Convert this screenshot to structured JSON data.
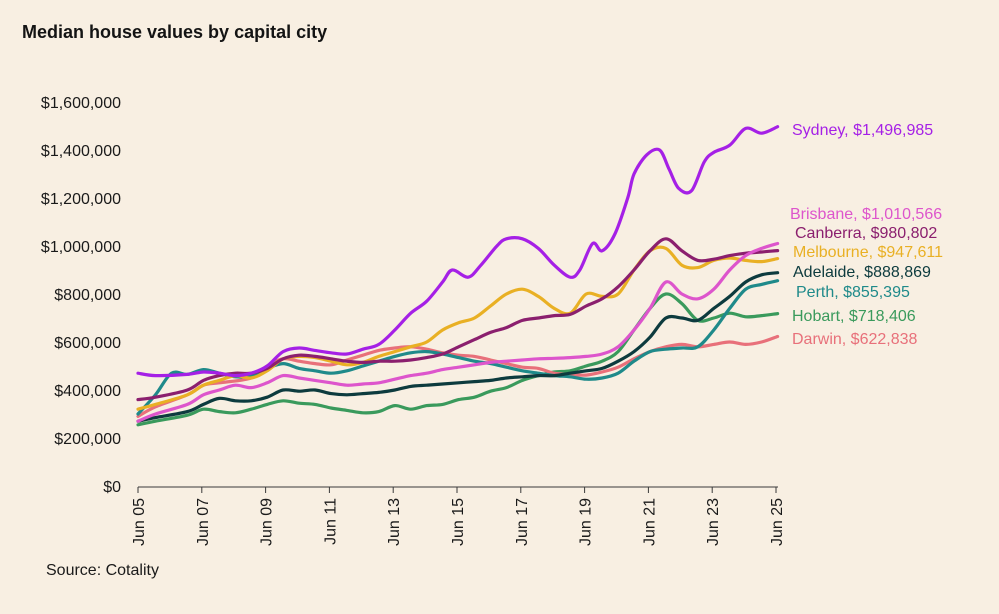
{
  "title": "Median house values by capital city",
  "source": "Source: Cotality",
  "chart_data": {
    "type": "line",
    "title": "Median house values by capital city",
    "xlabel": "",
    "ylabel": "",
    "ylim": [
      0,
      1600000
    ],
    "xlim": [
      2005.45,
      2025.5
    ],
    "y_ticks": [
      0,
      200000,
      400000,
      600000,
      800000,
      1000000,
      1200000,
      1400000,
      1600000
    ],
    "y_tick_labels": [
      "$0",
      "$200,000",
      "$400,000",
      "$600,000",
      "$800,000",
      "$1,000,000",
      "$1,200,000",
      "$1,400,000",
      "$1,600,000"
    ],
    "x_ticks": [
      2005.45,
      2007.45,
      2009.45,
      2011.45,
      2013.45,
      2015.45,
      2017.45,
      2019.45,
      2021.45,
      2023.45,
      2025.45
    ],
    "x_tick_labels": [
      "Jun 05",
      "Jun 07",
      "Jun 09",
      "Jun 11",
      "Jun 13",
      "Jun 15",
      "Jun 17",
      "Jun 19",
      "Jun 21",
      "Jun 23",
      "Jun 25"
    ],
    "grid": false,
    "legend": "end-of-line labels",
    "series": [
      {
        "name": "Hobart",
        "label": "Hobart, $718,406",
        "color": "#3a9a5c",
        "x": [
          2005.45,
          2006,
          2007,
          2007.5,
          2008,
          2008.5,
          2009,
          2009.5,
          2010,
          2010.5,
          2011,
          2011.5,
          2012,
          2012.5,
          2013,
          2013.5,
          2014,
          2014.5,
          2015,
          2015.5,
          2016,
          2016.5,
          2017,
          2017.5,
          2018,
          2018.5,
          2019,
          2019.5,
          2020,
          2020.5,
          2021,
          2021.5,
          2022,
          2022.5,
          2023,
          2023.5,
          2024,
          2024.5,
          2025,
          2025.5
        ],
        "y": [
          255000,
          270000,
          295000,
          320000,
          310000,
          305000,
          320000,
          340000,
          355000,
          345000,
          340000,
          325000,
          315000,
          305000,
          310000,
          335000,
          320000,
          335000,
          340000,
          360000,
          370000,
          395000,
          410000,
          440000,
          460000,
          475000,
          480000,
          500000,
          520000,
          560000,
          650000,
          740000,
          800000,
          760000,
          690000,
          700000,
          720000,
          705000,
          710000,
          718406
        ]
      },
      {
        "name": "Darwin",
        "label": "Darwin, $622,838",
        "color": "#e8707a",
        "x": [
          2005.45,
          2006,
          2007,
          2007.5,
          2008,
          2009,
          2009.5,
          2010,
          2010.5,
          2011,
          2011.5,
          2012,
          2012.5,
          2013,
          2013.5,
          2014,
          2014.5,
          2015,
          2015.5,
          2016,
          2016.5,
          2017,
          2017.5,
          2018,
          2018.5,
          2019,
          2019.5,
          2020,
          2020.5,
          2021,
          2021.5,
          2022,
          2022.5,
          2023,
          2023.5,
          2024,
          2024.5,
          2025,
          2025.5
        ],
        "y": [
          290000,
          330000,
          380000,
          420000,
          430000,
          450000,
          500000,
          530000,
          520000,
          510000,
          505000,
          525000,
          545000,
          565000,
          575000,
          580000,
          570000,
          555000,
          545000,
          540000,
          525000,
          510000,
          495000,
          490000,
          470000,
          465000,
          462000,
          475000,
          495000,
          530000,
          560000,
          580000,
          590000,
          580000,
          590000,
          600000,
          590000,
          600000,
          622838
        ]
      },
      {
        "name": "Perth",
        "label": "Perth, $855,395",
        "color": "#1f8a8a",
        "x": [
          2005.45,
          2006,
          2006.5,
          2007,
          2007.5,
          2008,
          2008.5,
          2009,
          2009.5,
          2010,
          2010.5,
          2011,
          2011.5,
          2012,
          2012.5,
          2013,
          2013.5,
          2014,
          2014.5,
          2015,
          2015.5,
          2016,
          2016.5,
          2017,
          2017.5,
          2018,
          2018.5,
          2019,
          2019.5,
          2020,
          2020.5,
          2021,
          2021.5,
          2022,
          2022.5,
          2023,
          2023.5,
          2024,
          2024.5,
          2025,
          2025.5
        ],
        "y": [
          300000,
          380000,
          470000,
          465000,
          485000,
          470000,
          455000,
          460000,
          490000,
          510000,
          490000,
          480000,
          470000,
          480000,
          500000,
          520000,
          540000,
          555000,
          560000,
          550000,
          535000,
          520000,
          510000,
          495000,
          480000,
          470000,
          460000,
          455000,
          445000,
          450000,
          470000,
          520000,
          560000,
          570000,
          575000,
          580000,
          650000,
          740000,
          820000,
          840000,
          855395
        ]
      },
      {
        "name": "Adelaide",
        "label": "Adelaide, $888,869",
        "color": "#0d3b3e",
        "x": [
          2005.45,
          2006,
          2007,
          2007.5,
          2008,
          2008.5,
          2009,
          2009.5,
          2010,
          2010.5,
          2011,
          2011.5,
          2012,
          2012.5,
          2013,
          2013.5,
          2014,
          2014.5,
          2015,
          2015.5,
          2016,
          2016.5,
          2017,
          2017.5,
          2018,
          2018.5,
          2019,
          2019.5,
          2020,
          2020.5,
          2021,
          2021.5,
          2022,
          2022.5,
          2023,
          2023.5,
          2024,
          2024.5,
          2025,
          2025.5
        ],
        "y": [
          270000,
          285000,
          310000,
          340000,
          365000,
          355000,
          355000,
          370000,
          400000,
          395000,
          400000,
          385000,
          380000,
          385000,
          390000,
          400000,
          415000,
          420000,
          425000,
          430000,
          435000,
          440000,
          450000,
          455000,
          460000,
          460000,
          470000,
          480000,
          490000,
          520000,
          560000,
          620000,
          700000,
          700000,
          690000,
          740000,
          790000,
          850000,
          880000,
          888869
        ]
      },
      {
        "name": "Melbourne",
        "label": "Melbourne, $947,611",
        "color": "#e9b024",
        "x": [
          2005.45,
          2006,
          2007,
          2007.5,
          2008,
          2008.5,
          2009,
          2009.5,
          2010,
          2010.5,
          2011,
          2011.5,
          2012,
          2012.5,
          2013,
          2013.5,
          2014,
          2014.5,
          2015,
          2015.5,
          2016,
          2016.5,
          2017,
          2017.5,
          2018,
          2018.5,
          2019,
          2019.5,
          2020,
          2020.5,
          2021,
          2021.5,
          2022,
          2022.5,
          2023,
          2023.5,
          2024,
          2024.5,
          2025,
          2025.5
        ],
        "y": [
          320000,
          340000,
          380000,
          420000,
          440000,
          460000,
          450000,
          480000,
          530000,
          540000,
          535000,
          520000,
          505000,
          515000,
          540000,
          560000,
          580000,
          600000,
          650000,
          680000,
          700000,
          750000,
          800000,
          820000,
          790000,
          740000,
          720000,
          800000,
          790000,
          800000,
          900000,
          980000,
          990000,
          920000,
          910000,
          940000,
          950000,
          940000,
          935000,
          947611
        ]
      },
      {
        "name": "Canberra",
        "label": "Canberra, $980,802",
        "color": "#8b1f6e",
        "x": [
          2005.45,
          2006,
          2007,
          2007.5,
          2008,
          2008.5,
          2009,
          2009.5,
          2010,
          2010.5,
          2011,
          2011.5,
          2012,
          2012.5,
          2013,
          2013.5,
          2014,
          2014.5,
          2015,
          2015.5,
          2016,
          2016.5,
          2017,
          2017.5,
          2018,
          2018.5,
          2019,
          2019.5,
          2020,
          2020.5,
          2021,
          2021.5,
          2022,
          2022.5,
          2023,
          2023.5,
          2024,
          2024.5,
          2025,
          2025.5
        ],
        "y": [
          360000,
          370000,
          400000,
          440000,
          460000,
          470000,
          470000,
          490000,
          530000,
          545000,
          540000,
          530000,
          520000,
          515000,
          520000,
          520000,
          525000,
          535000,
          550000,
          580000,
          610000,
          640000,
          660000,
          690000,
          700000,
          710000,
          715000,
          750000,
          780000,
          830000,
          900000,
          980000,
          1030000,
          980000,
          940000,
          945000,
          960000,
          970000,
          975000,
          980802
        ]
      },
      {
        "name": "Brisbane",
        "label": "Brisbane, $1,010,566",
        "color": "#dd55cc",
        "x": [
          2005.45,
          2006,
          2007,
          2007.5,
          2008,
          2008.5,
          2009,
          2009.5,
          2010,
          2010.5,
          2011,
          2011.5,
          2012,
          2012.5,
          2013,
          2013.5,
          2014,
          2014.5,
          2015,
          2015.5,
          2016,
          2016.5,
          2017,
          2017.5,
          2018,
          2018.5,
          2019,
          2019.5,
          2020,
          2020.5,
          2021,
          2021.5,
          2022,
          2022.5,
          2023,
          2023.5,
          2024,
          2024.5,
          2025,
          2025.5
        ],
        "y": [
          270000,
          300000,
          340000,
          380000,
          400000,
          420000,
          410000,
          430000,
          460000,
          450000,
          440000,
          430000,
          420000,
          425000,
          430000,
          445000,
          460000,
          470000,
          485000,
          495000,
          505000,
          515000,
          520000,
          525000,
          530000,
          532000,
          535000,
          540000,
          550000,
          580000,
          650000,
          740000,
          850000,
          800000,
          780000,
          820000,
          900000,
          960000,
          990000,
          1010566
        ]
      },
      {
        "name": "Sydney",
        "label": "Sydney, $1,496,985",
        "color": "#a520e6",
        "x": [
          2005.45,
          2006,
          2007,
          2007.5,
          2008,
          2008.5,
          2009,
          2009.5,
          2010,
          2010.5,
          2011,
          2011.5,
          2012,
          2012.5,
          2013,
          2013.5,
          2014,
          2014.5,
          2015,
          2015.3,
          2015.8,
          2016.2,
          2016.7,
          2017,
          2017.5,
          2018,
          2018.5,
          2019,
          2019.3,
          2019.7,
          2020,
          2020.4,
          2020.8,
          2021,
          2021.4,
          2021.8,
          2022.1,
          2022.4,
          2022.8,
          2023.2,
          2023.5,
          2024,
          2024.5,
          2025,
          2025.5
        ],
        "y": [
          470000,
          460000,
          465000,
          475000,
          470000,
          460000,
          470000,
          500000,
          560000,
          575000,
          565000,
          555000,
          550000,
          570000,
          590000,
          650000,
          720000,
          770000,
          850000,
          900000,
          870000,
          920000,
          1000000,
          1030000,
          1030000,
          990000,
          920000,
          870000,
          900000,
          1010000,
          980000,
          1050000,
          1200000,
          1300000,
          1380000,
          1400000,
          1320000,
          1240000,
          1230000,
          1350000,
          1390000,
          1420000,
          1490000,
          1470000,
          1496985
        ]
      }
    ]
  }
}
